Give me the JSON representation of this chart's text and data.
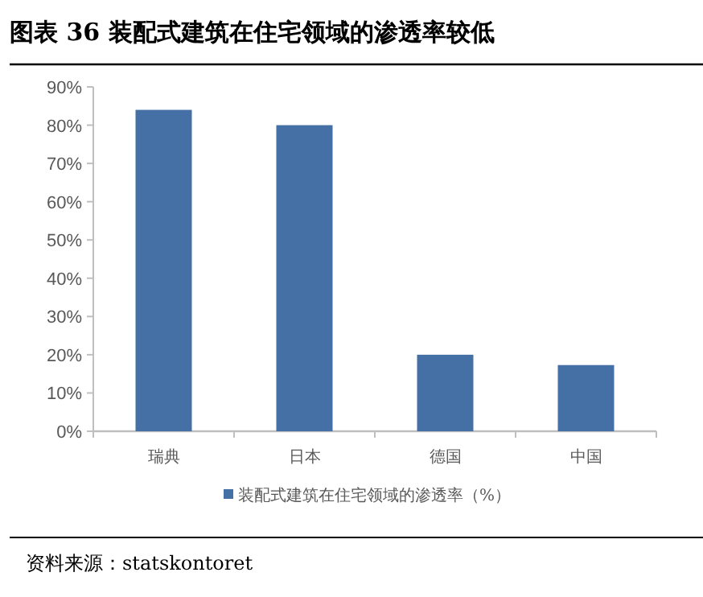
{
  "chart_data": {
    "type": "bar",
    "title": "图表 36 装配式建筑在住宅领域的渗透率较低",
    "categories": [
      "瑞典",
      "日本",
      "德国",
      "中国"
    ],
    "series": [
      {
        "name": "装配式建筑在住宅领域的渗透率（%）",
        "color": "#4570a5",
        "values": [
          84,
          80,
          20,
          17.3
        ]
      }
    ],
    "ylim": [
      0,
      90
    ],
    "yticks": [
      {
        "value": 0,
        "label": "0%"
      },
      {
        "value": 10,
        "label": "10%"
      },
      {
        "value": 20,
        "label": "20%"
      },
      {
        "value": 30,
        "label": "30%"
      },
      {
        "value": 40,
        "label": "40%"
      },
      {
        "value": 50,
        "label": "50%"
      },
      {
        "value": 60,
        "label": "60%"
      },
      {
        "value": 70,
        "label": "70%"
      },
      {
        "value": 80,
        "label": "80%"
      },
      {
        "value": 90,
        "label": "90%"
      }
    ],
    "grid": false,
    "legend": "bottom",
    "annotations": [
      "资料来源：statskontoret"
    ]
  }
}
